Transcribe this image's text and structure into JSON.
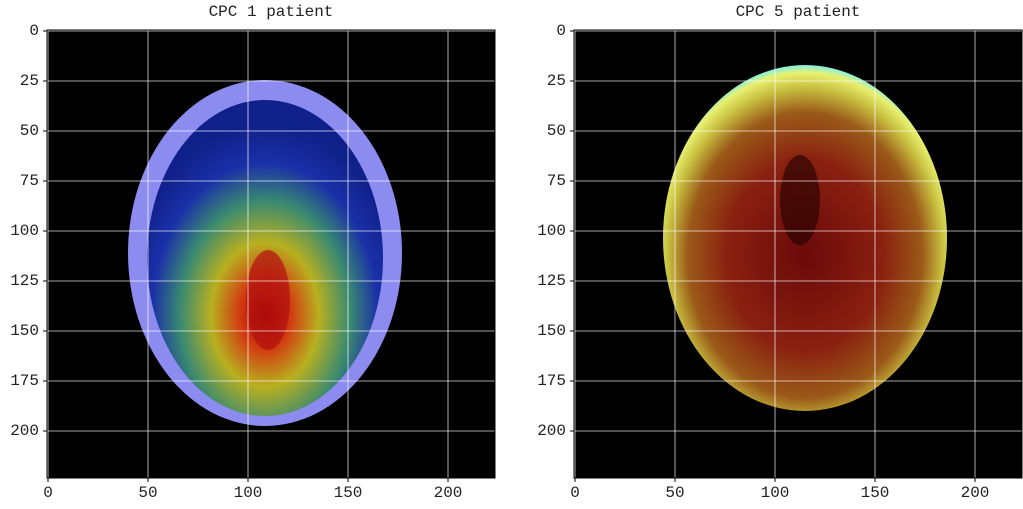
{
  "chart_data": [
    {
      "type": "image",
      "title": "CPC 1 patient",
      "xlim": [
        -0.5,
        223.5
      ],
      "ylim": [
        223.5,
        -0.5
      ],
      "xticks": [
        0,
        50,
        100,
        150,
        200
      ],
      "yticks": [
        0,
        25,
        50,
        75,
        100,
        125,
        150,
        175,
        200
      ],
      "grid": true
    },
    {
      "type": "image",
      "title": "CPC 5 patient",
      "xlim": [
        -0.5,
        223.5
      ],
      "ylim": [
        223.5,
        -0.5
      ],
      "xticks": [
        0,
        50,
        100,
        150,
        200
      ],
      "yticks": [
        0,
        25,
        50,
        75,
        100,
        125,
        150,
        175,
        200
      ],
      "grid": true
    }
  ]
}
